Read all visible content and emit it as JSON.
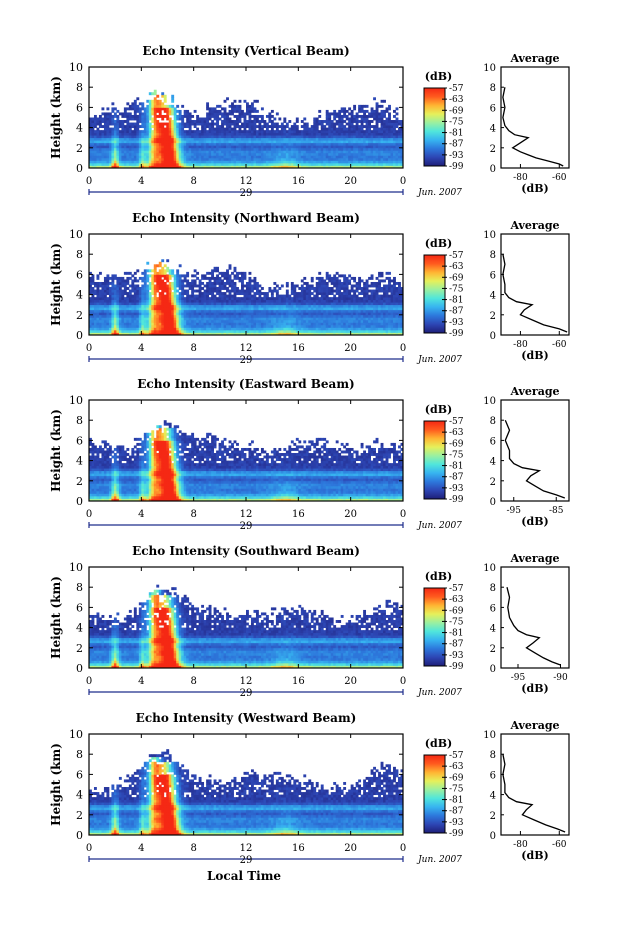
{
  "figure": {
    "shared_xlabel": "Local Time",
    "date_label": "Jun. 2007",
    "colorbar_unit": "(dB)",
    "colorbar_ticks": [
      "-57",
      "-63",
      "-69",
      "-75",
      "-81",
      "-87",
      "-93",
      "-99"
    ],
    "colorbar_range": [
      -99,
      -57
    ],
    "x_ticks": [
      "0",
      "4",
      "8",
      "12",
      "16",
      "20",
      "0"
    ],
    "x_range": [
      0,
      24
    ],
    "y_ticks": [
      "0",
      "2",
      "4",
      "6",
      "8",
      "10"
    ],
    "y_range": [
      0,
      10
    ],
    "ylabel": "Height (km)",
    "average_title": "Average",
    "average_xlabel": "(dB)",
    "colors": {
      "colormap": [
        "#1e1e78",
        "#2d46b4",
        "#2d78dc",
        "#37b4f0",
        "#50e6dc",
        "#9bf0a0",
        "#e6f05a",
        "#ffb432",
        "#ff5a1e",
        "#f52814"
      ],
      "ink": "#000000",
      "timeline_blue": "#1f2d8c"
    }
  },
  "chart_data": [
    {
      "type": "heatmap",
      "title": "Echo Intensity (Vertical Beam)",
      "day_label": "29",
      "avg_ticks": [
        "-80",
        "-60"
      ],
      "avg_xlim": [
        -90,
        -55
      ],
      "average_profile": {
        "height_km": [
          0.2,
          0.4,
          0.7,
          1.0,
          1.3,
          1.6,
          2.0,
          2.5,
          3.0,
          3.3,
          3.7,
          4.2,
          5.0,
          6.0,
          7.0,
          8.0
        ],
        "db": [
          -58,
          -60,
          -66,
          -72,
          -76,
          -80,
          -84,
          -80,
          -76,
          -83,
          -86,
          -88,
          -89,
          -88,
          -89,
          -88
        ]
      }
    },
    {
      "type": "heatmap",
      "title": "Echo Intensity (Northward Beam)",
      "day_label": "29",
      "avg_ticks": [
        "-80",
        "-60"
      ],
      "avg_xlim": [
        -90,
        -55
      ],
      "average_profile": {
        "height_km": [
          0.3,
          0.6,
          1.0,
          1.5,
          2.0,
          2.5,
          3.0,
          3.3,
          3.7,
          4.2,
          5.0,
          6.0,
          7.0,
          8.0
        ],
        "db": [
          -56,
          -60,
          -68,
          -74,
          -80,
          -78,
          -74,
          -82,
          -86,
          -88,
          -88,
          -89,
          -88,
          -89
        ]
      }
    },
    {
      "type": "heatmap",
      "title": "Echo Intensity (Eastward Beam)",
      "day_label": "29",
      "avg_ticks": [
        "-95",
        "-85"
      ],
      "avg_xlim": [
        -98,
        -82
      ],
      "average_profile": {
        "height_km": [
          0.3,
          0.6,
          1.0,
          1.5,
          2.0,
          2.5,
          3.0,
          3.3,
          3.7,
          4.2,
          5.0,
          6.0,
          7.0,
          8.0
        ],
        "db": [
          -83,
          -85,
          -88,
          -90,
          -92,
          -91,
          -89,
          -93,
          -95,
          -96,
          -96,
          -97,
          -96,
          -97
        ]
      }
    },
    {
      "type": "heatmap",
      "title": "Echo Intensity (Southward Beam)",
      "day_label": "29",
      "avg_ticks": [
        "-95",
        "-90"
      ],
      "avg_xlim": [
        -97,
        -89
      ],
      "average_profile": {
        "height_km": [
          0.3,
          0.6,
          1.0,
          1.5,
          2.0,
          2.5,
          3.0,
          3.3,
          3.7,
          4.2,
          5.0,
          6.0,
          7.0,
          8.0
        ],
        "db": [
          -90,
          -91,
          -92,
          -93,
          -94,
          -93.2,
          -92.5,
          -94,
          -95,
          -95.5,
          -96,
          -96.2,
          -96,
          -96.3
        ]
      }
    },
    {
      "type": "heatmap",
      "title": "Echo Intensity (Westward Beam)",
      "day_label": "29",
      "avg_ticks": [
        "-80",
        "-60"
      ],
      "avg_xlim": [
        -90,
        -55
      ],
      "average_profile": {
        "height_km": [
          0.3,
          0.6,
          1.0,
          1.5,
          2.0,
          2.5,
          3.0,
          3.3,
          3.7,
          4.2,
          5.0,
          6.0,
          7.0,
          8.0
        ],
        "db": [
          -57,
          -61,
          -67,
          -73,
          -79,
          -77,
          -74,
          -82,
          -86,
          -88,
          -88,
          -89,
          -88,
          -89
        ]
      }
    }
  ]
}
